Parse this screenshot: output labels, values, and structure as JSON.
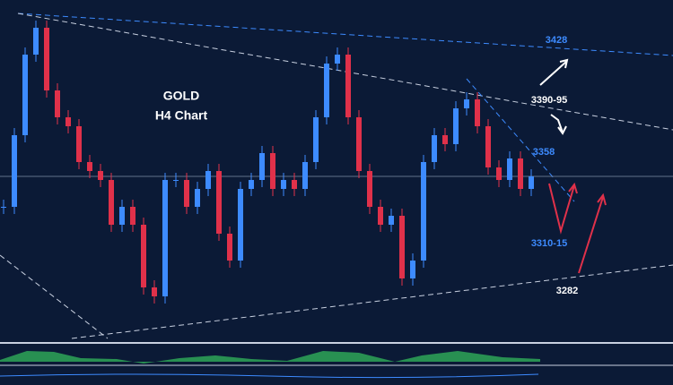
{
  "chart_data": {
    "type": "candlestick",
    "title": "GOLD",
    "subtitle": "H4 Chart",
    "close": [
      3341,
      3381,
      3426,
      3441,
      3406,
      3391,
      3386,
      3366,
      3361,
      3356,
      3331,
      3341,
      3331,
      3296,
      3291,
      3356,
      3356,
      3341,
      3351,
      3361,
      3326,
      3311,
      3351,
      3356,
      3371,
      3351,
      3356,
      3351,
      3366,
      3391,
      3421,
      3426,
      3391,
      3361,
      3341,
      3331,
      3336,
      3301,
      3311,
      3366,
      3381,
      3376,
      3396,
      3401,
      3386,
      3363,
      3356,
      3368,
      3351,
      3358
    ],
    "up_color": "#3d8bff",
    "down_color": "#e0314a",
    "annotations": [
      {
        "text": "3428",
        "color": "#3d8bff"
      },
      {
        "text": "3390-95",
        "color": "#ffffff"
      },
      {
        "text": "3358",
        "color": "#3d8bff"
      },
      {
        "text": "3310-15",
        "color": "#3d8bff"
      },
      {
        "text": "3282",
        "color": "#ffffff"
      }
    ]
  }
}
